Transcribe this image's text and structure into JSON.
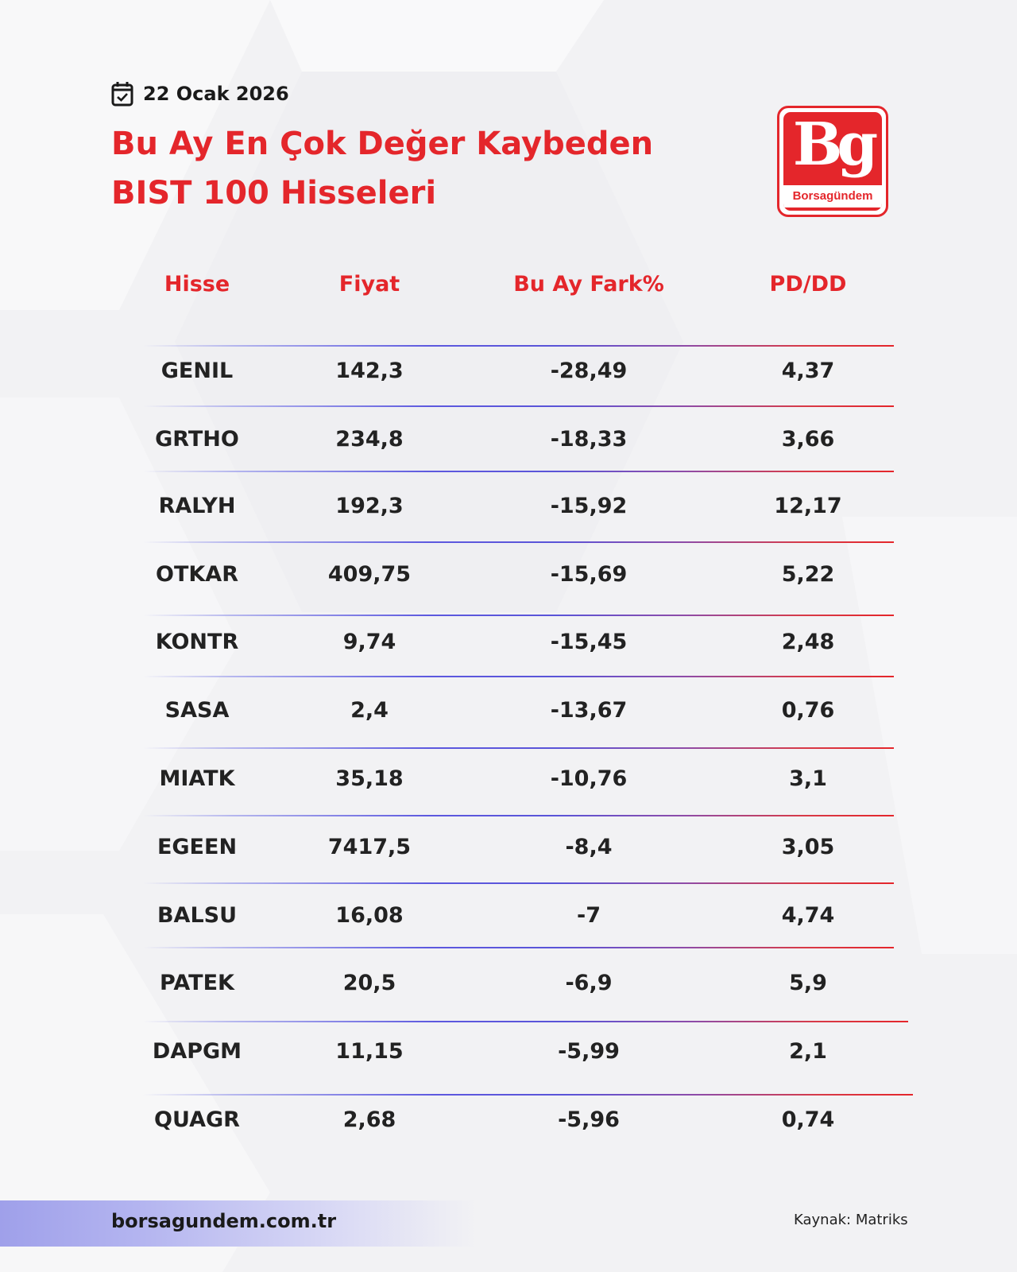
{
  "header": {
    "date": "22 Ocak 2026",
    "title_line1": "Bu Ay En Çok Değer Kaybeden",
    "title_line2": "BIST 100 Hisseleri"
  },
  "logo": {
    "letters": "Bg",
    "wordmark": "Borsagündem"
  },
  "table": {
    "headers": [
      "Hisse",
      "Fiyat",
      "Bu Ay Fark%",
      "PD/DD"
    ],
    "rows": [
      [
        "GENIL",
        "142,3",
        "-28,49",
        "4,37"
      ],
      [
        "GRTHO",
        "234,8",
        "-18,33",
        "3,66"
      ],
      [
        "RALYH",
        "192,3",
        "-15,92",
        "12,17"
      ],
      [
        "OTKAR",
        "409,75",
        "-15,69",
        "5,22"
      ],
      [
        "KONTR",
        "9,74",
        "-15,45",
        "2,48"
      ],
      [
        "SASA",
        "2,4",
        "-13,67",
        "0,76"
      ],
      [
        "MIATK",
        "35,18",
        "-10,76",
        "3,1"
      ],
      [
        "EGEEN",
        "7417,5",
        "-8,4",
        "3,05"
      ],
      [
        "BALSU",
        "16,08",
        "-7",
        "4,74"
      ],
      [
        "PATEK",
        "20,5",
        "-6,9",
        "5,9"
      ],
      [
        "DAPGM",
        "11,15",
        "-5,99",
        "2,1"
      ],
      [
        "QUAGR",
        "2,68",
        "-5,96",
        "0,74"
      ]
    ]
  },
  "footer": {
    "website": "borsagundem.com.tr",
    "source": "Kaynak: Matriks"
  },
  "colors": {
    "accent_red": "#e4262b",
    "text_dark": "#222222",
    "separator_blue": "#5a54d8",
    "background": "#f2f2f4"
  }
}
